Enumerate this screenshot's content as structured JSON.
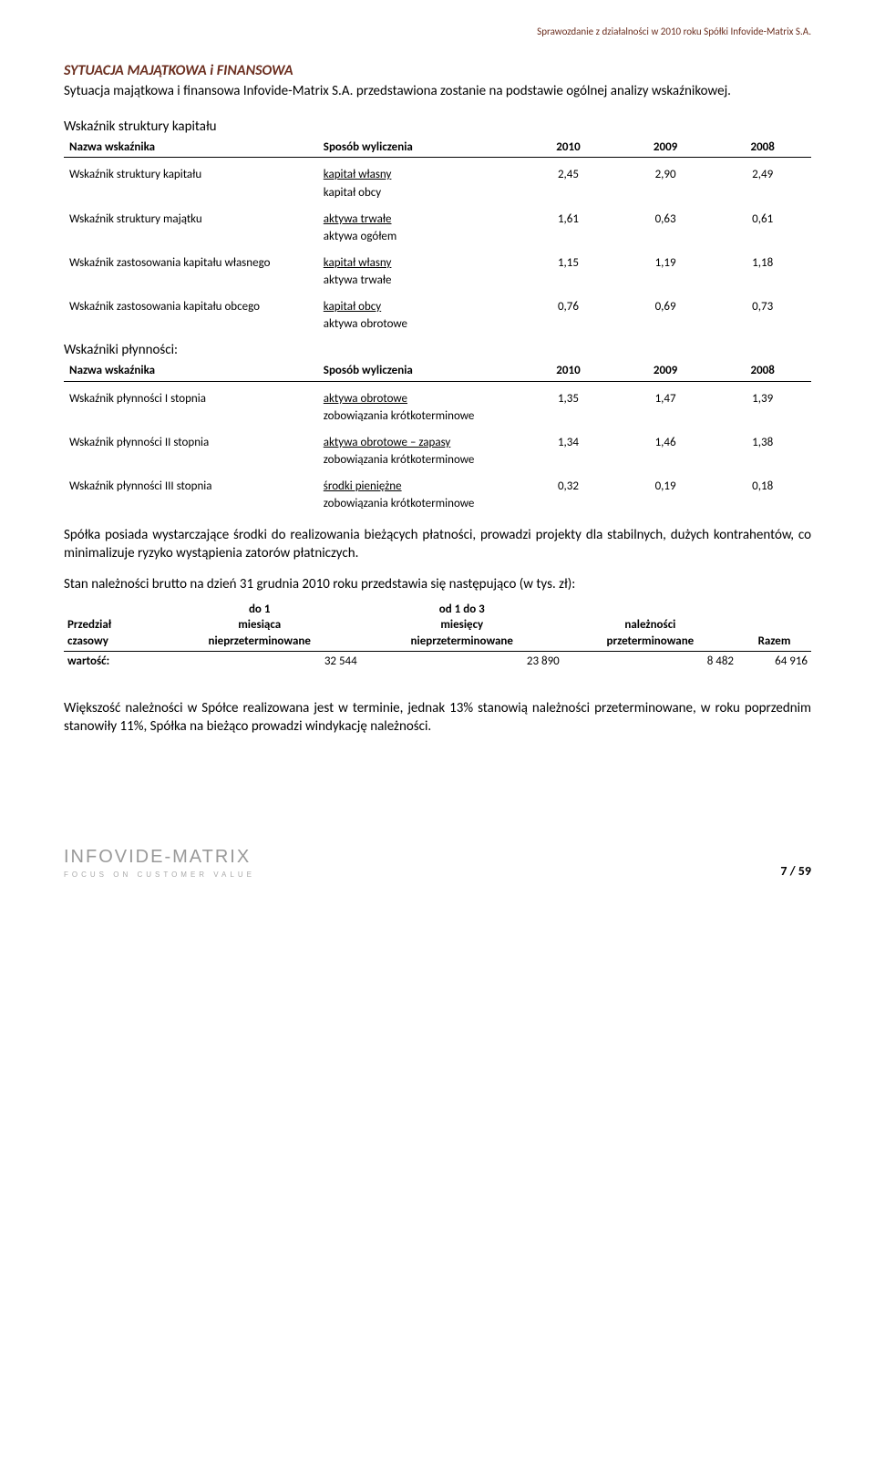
{
  "header_note": "Sprawozdanie z działalności w 2010 roku Spółki Infovide-Matrix S.A.",
  "section_title": "SYTUACJA  MAJĄTKOWA i FINANSOWA",
  "intro": "Sytuacja majątkowa i finansowa Infovide-Matrix S.A. przedstawiona zostanie na podstawie ogólnej analizy wskaźnikowej.",
  "table1_caption": "Wskaźnik struktury kapitału",
  "table1": {
    "columns": [
      "Nazwa wskaźnika",
      "Sposób wyliczenia",
      "2010",
      "2009",
      "2008"
    ],
    "rows": [
      {
        "name": "Wskaźnik struktury kapitału",
        "formula_top": "kapitał własny",
        "formula_bot": "kapitał obcy",
        "vals": [
          "2,45",
          "2,90",
          "2,49"
        ]
      },
      {
        "name": "Wskaźnik struktury majątku",
        "formula_top": "aktywa trwałe",
        "formula_bot": "aktywa ogółem",
        "vals": [
          "1,61",
          "0,63",
          "0,61"
        ]
      },
      {
        "name": "Wskaźnik zastosowania kapitału własnego",
        "formula_top": "kapitał własny",
        "formula_bot": "aktywa trwałe",
        "vals": [
          "1,15",
          "1,19",
          "1,18"
        ]
      },
      {
        "name": "Wskaźnik zastosowania kapitału obcego",
        "formula_top": "kapitał obcy",
        "formula_bot": "aktywa obrotowe",
        "vals": [
          "0,76",
          "0,69",
          "0,73"
        ]
      }
    ]
  },
  "table2_caption": "Wskaźniki płynności:",
  "table2": {
    "columns": [
      "Nazwa wskaźnika",
      "Sposób wyliczenia",
      "2010",
      "2009",
      "2008"
    ],
    "rows": [
      {
        "name": "Wskaźnik płynności I stopnia",
        "formula_top": "aktywa obrotowe",
        "formula_bot": "zobowiązania krótkoterminowe",
        "vals": [
          "1,35",
          "1,47",
          "1,39"
        ]
      },
      {
        "name": "Wskaźnik płynności II stopnia",
        "formula_top": "aktywa obrotowe – zapasy",
        "formula_bot": "zobowiązania krótkoterminowe",
        "vals": [
          "1,34",
          "1,46",
          "1,38"
        ]
      },
      {
        "name": "Wskaźnik płynności III stopnia",
        "formula_top": "środki pieniężne",
        "formula_bot": "zobowiązania krótkoterminowe",
        "vals": [
          "0,32",
          "0,19",
          "0,18"
        ]
      }
    ]
  },
  "para1": "Spółka posiada wystarczające środki do realizowania bieżących płatności, prowadzi projekty dla stabilnych, dużych kontrahentów, co minimalizuje ryzyko wystąpienia zatorów płatniczych.",
  "para2": "Stan należności brutto na dzień 31 grudnia 2010 roku przedstawia się następująco (w tys. zł):",
  "table3": {
    "headers": [
      {
        "l1": "Przedział",
        "l2": "czasowy",
        "l3": ""
      },
      {
        "l1": "do 1",
        "l2": "miesiąca",
        "l3": "nieprzeterminowane"
      },
      {
        "l1": "od 1 do 3",
        "l2": "miesięcy",
        "l3": "nieprzeterminowane"
      },
      {
        "l1": "należności",
        "l2": "przeterminowane",
        "l3": ""
      },
      {
        "l1": "Razem",
        "l2": "",
        "l3": ""
      }
    ],
    "row_label": "wartość:",
    "row_vals": [
      "32 544",
      "23 890",
      "8 482",
      "64 916"
    ]
  },
  "para3": "Większość należności w Spółce realizowana jest w terminie, jednak 13% stanowią należności przeterminowane, w roku poprzednim stanowiły 11%, Spółka na bieżąco prowadzi windykację należności.",
  "footer": {
    "brand": "INFOVIDE-MATRIX",
    "tagline": "FOCUS ON CUSTOMER VALUE",
    "pagenum": "7 / 59"
  }
}
